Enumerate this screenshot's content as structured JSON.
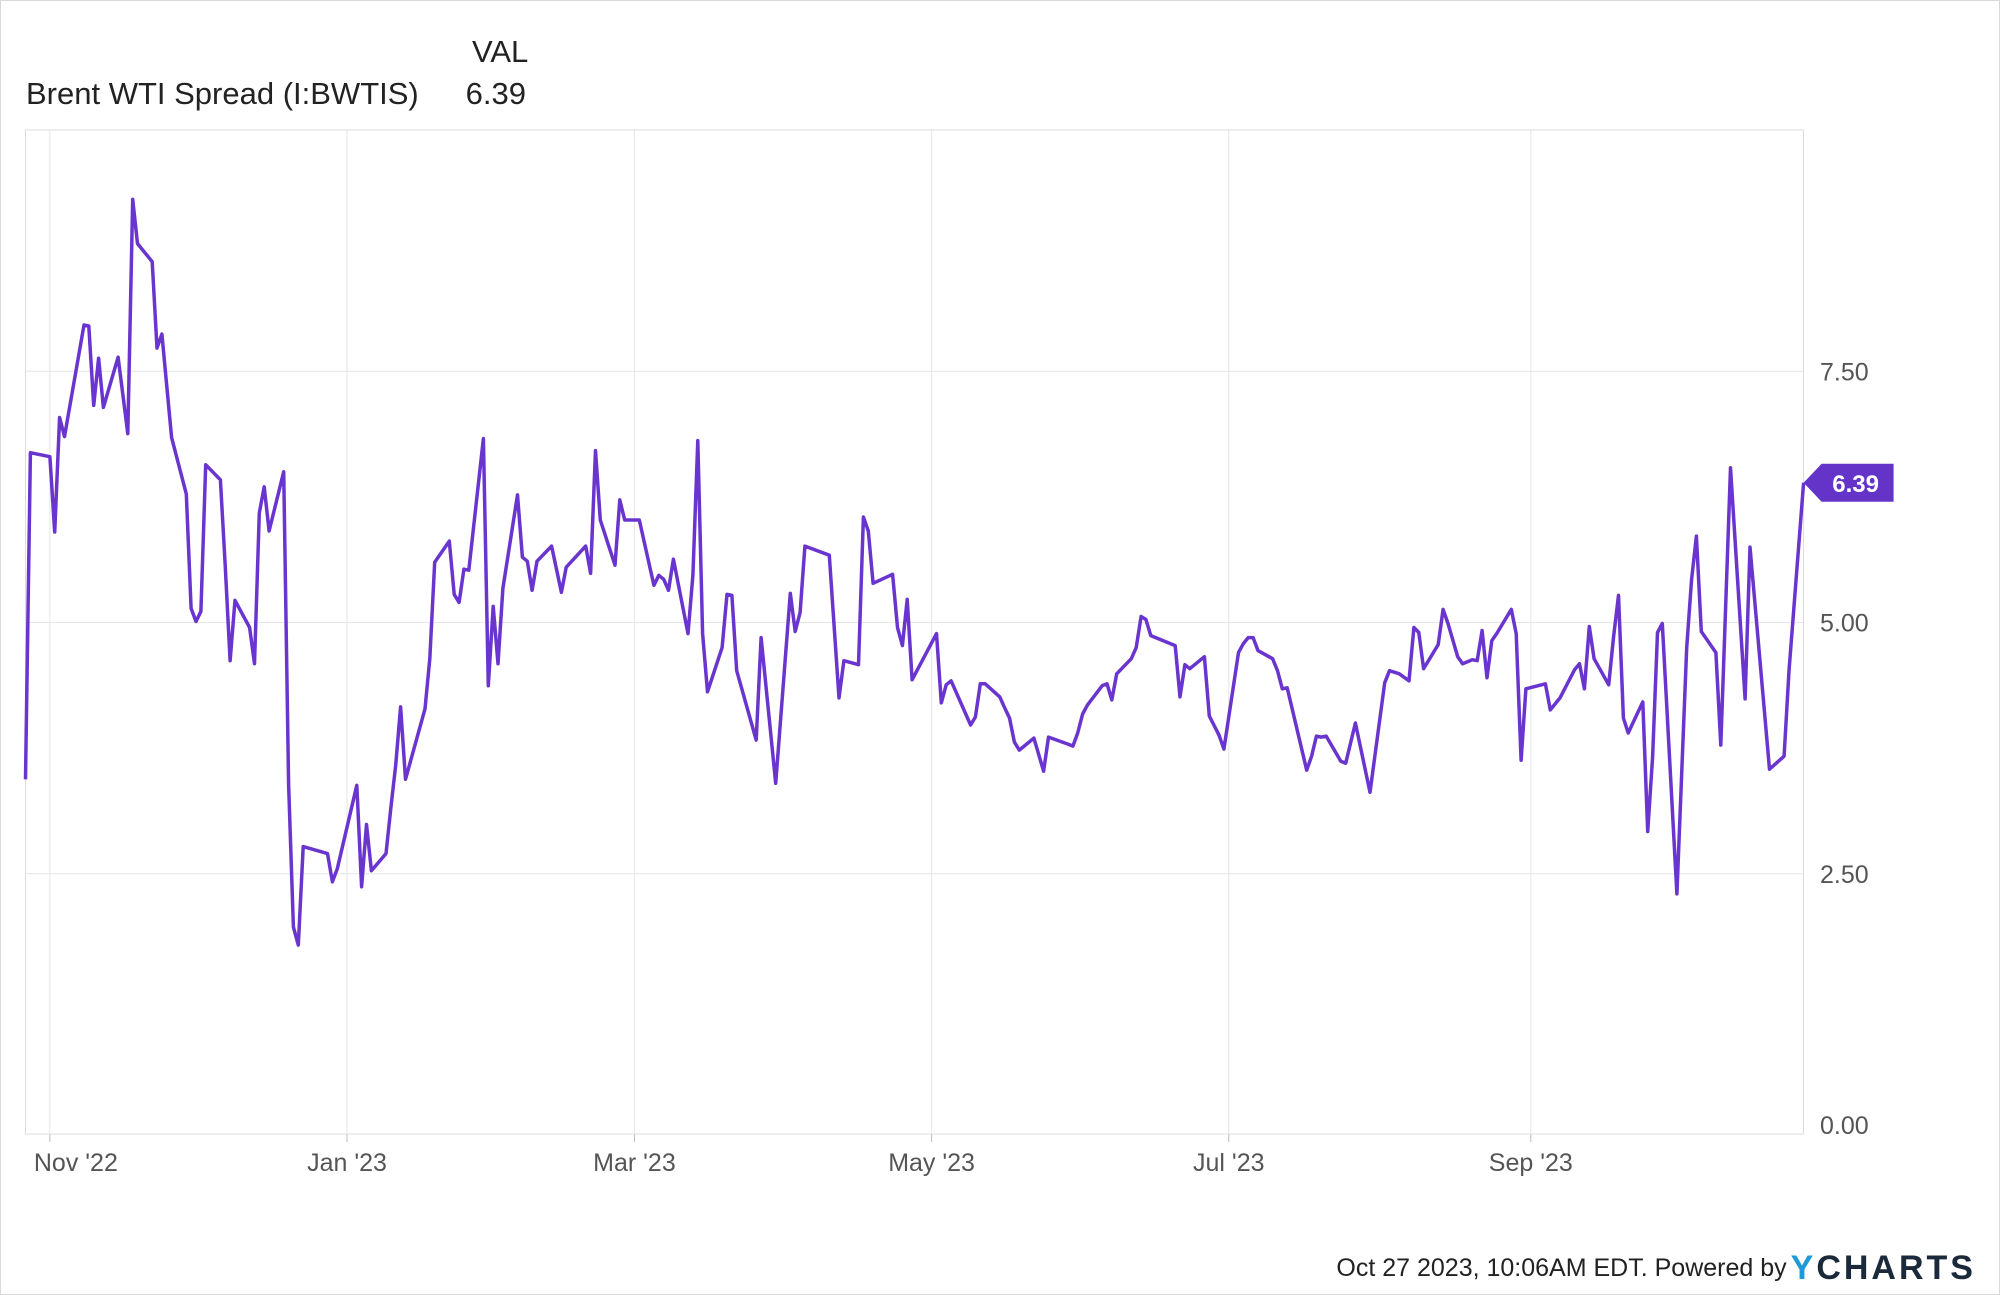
{
  "header": {
    "column_label": "VAL",
    "series_label": "Brent WTI Spread (I:BWTIS)",
    "series_value": "6.39"
  },
  "footer": {
    "timestamp": "Oct 27 2023, 10:06AM EDT. Powered by",
    "logo_y": "Y",
    "logo_rest": "CHARTS"
  },
  "colors": {
    "line": "#6a35cf",
    "label_bg": "#6434c8",
    "grid": "#e6e6e6",
    "axis_text": "#555555"
  },
  "chart_data": {
    "type": "line",
    "title": "",
    "xlabel": "",
    "ylabel": "",
    "ylim": [
      0,
      9.5
    ],
    "xlim": [
      "2022-10-27",
      "2023-10-27"
    ],
    "grid": true,
    "y_axis_position": "right",
    "y_ticks": [
      "0.00",
      "2.50",
      "5.00",
      "7.50"
    ],
    "x_ticks": [
      {
        "date": "2022-11-01",
        "label": "Nov '22"
      },
      {
        "date": "2023-01-01",
        "label": "Jan '23"
      },
      {
        "date": "2023-03-01",
        "label": "Mar '23"
      },
      {
        "date": "2023-05-01",
        "label": "May '23"
      },
      {
        "date": "2023-07-01",
        "label": "Jul '23"
      },
      {
        "date": "2023-09-01",
        "label": "Sep '23"
      }
    ],
    "last_value_label": "6.39",
    "series": [
      {
        "name": "Brent WTI Spread (I:BWTIS)",
        "points": [
          [
            "2022-10-27",
            3.44
          ],
          [
            "2022-10-28",
            6.69
          ],
          [
            "2022-11-01",
            6.65
          ],
          [
            "2022-11-02",
            5.9
          ],
          [
            "2022-11-03",
            7.04
          ],
          [
            "2022-11-04",
            6.85
          ],
          [
            "2022-11-08",
            7.96
          ],
          [
            "2022-11-09",
            7.95
          ],
          [
            "2022-11-10",
            7.16
          ],
          [
            "2022-11-11",
            7.63
          ],
          [
            "2022-11-12",
            7.14
          ],
          [
            "2022-11-15",
            7.64
          ],
          [
            "2022-11-17",
            6.88
          ],
          [
            "2022-11-18",
            9.21
          ],
          [
            "2022-11-19",
            8.77
          ],
          [
            "2022-11-22",
            8.59
          ],
          [
            "2022-11-23",
            7.73
          ],
          [
            "2022-11-24",
            7.87
          ],
          [
            "2022-11-26",
            6.84
          ],
          [
            "2022-11-29",
            6.28
          ],
          [
            "2022-11-30",
            5.14
          ],
          [
            "2022-12-01",
            5.01
          ],
          [
            "2022-12-02",
            5.11
          ],
          [
            "2022-12-03",
            6.57
          ],
          [
            "2022-12-06",
            6.42
          ],
          [
            "2022-12-07",
            5.57
          ],
          [
            "2022-12-08",
            4.62
          ],
          [
            "2022-12-09",
            5.22
          ],
          [
            "2022-12-12",
            4.95
          ],
          [
            "2022-12-13",
            4.59
          ],
          [
            "2022-12-14",
            6.09
          ],
          [
            "2022-12-15",
            6.35
          ],
          [
            "2022-12-16",
            5.91
          ],
          [
            "2022-12-19",
            6.5
          ],
          [
            "2022-12-20",
            3.39
          ],
          [
            "2022-12-21",
            1.97
          ],
          [
            "2022-12-22",
            1.79
          ],
          [
            "2022-12-23",
            2.77
          ],
          [
            "2022-12-28",
            2.7
          ],
          [
            "2022-12-29",
            2.42
          ],
          [
            "2022-12-30",
            2.55
          ],
          [
            "2023-01-03",
            3.38
          ],
          [
            "2023-01-04",
            2.37
          ],
          [
            "2023-01-05",
            2.99
          ],
          [
            "2023-01-06",
            2.53
          ],
          [
            "2023-01-09",
            2.7
          ],
          [
            "2023-01-10",
            3.16
          ],
          [
            "2023-01-11",
            3.58
          ],
          [
            "2023-01-12",
            4.16
          ],
          [
            "2023-01-13",
            3.44
          ],
          [
            "2023-01-17",
            4.14
          ],
          [
            "2023-01-18",
            4.64
          ],
          [
            "2023-01-19",
            5.6
          ],
          [
            "2023-01-22",
            5.81
          ],
          [
            "2023-01-23",
            5.28
          ],
          [
            "2023-01-24",
            5.2
          ],
          [
            "2023-01-25",
            5.53
          ],
          [
            "2023-01-26",
            5.52
          ],
          [
            "2023-01-29",
            6.83
          ],
          [
            "2023-01-30",
            4.37
          ],
          [
            "2023-01-31",
            5.16
          ],
          [
            "2023-02-01",
            4.59
          ],
          [
            "2023-02-02",
            5.34
          ],
          [
            "2023-02-05",
            6.27
          ],
          [
            "2023-02-06",
            5.65
          ],
          [
            "2023-02-07",
            5.61
          ],
          [
            "2023-02-08",
            5.32
          ],
          [
            "2023-02-09",
            5.61
          ],
          [
            "2023-02-12",
            5.76
          ],
          [
            "2023-02-13",
            5.53
          ],
          [
            "2023-02-14",
            5.3
          ],
          [
            "2023-02-15",
            5.55
          ],
          [
            "2023-02-19",
            5.76
          ],
          [
            "2023-02-20",
            5.49
          ],
          [
            "2023-02-21",
            6.71
          ],
          [
            "2023-02-22",
            6.02
          ],
          [
            "2023-02-25",
            5.57
          ],
          [
            "2023-02-26",
            6.22
          ],
          [
            "2023-02-27",
            6.02
          ],
          [
            "2023-03-02",
            6.02
          ],
          [
            "2023-03-05",
            5.37
          ],
          [
            "2023-03-06",
            5.47
          ],
          [
            "2023-03-07",
            5.43
          ],
          [
            "2023-03-08",
            5.32
          ],
          [
            "2023-03-09",
            5.63
          ],
          [
            "2023-03-12",
            4.89
          ],
          [
            "2023-03-13",
            5.47
          ],
          [
            "2023-03-14",
            6.81
          ],
          [
            "2023-03-15",
            4.89
          ],
          [
            "2023-03-16",
            4.31
          ],
          [
            "2023-03-19",
            4.75
          ],
          [
            "2023-03-20",
            5.28
          ],
          [
            "2023-03-21",
            5.27
          ],
          [
            "2023-03-22",
            4.52
          ],
          [
            "2023-03-26",
            3.83
          ],
          [
            "2023-03-27",
            4.85
          ],
          [
            "2023-03-30",
            3.4
          ],
          [
            "2023-04-02",
            5.29
          ],
          [
            "2023-04-03",
            4.91
          ],
          [
            "2023-04-04",
            5.1
          ],
          [
            "2023-04-05",
            5.76
          ],
          [
            "2023-04-10",
            5.67
          ],
          [
            "2023-04-12",
            4.25
          ],
          [
            "2023-04-13",
            4.62
          ],
          [
            "2023-04-16",
            4.58
          ],
          [
            "2023-04-17",
            6.05
          ],
          [
            "2023-04-18",
            5.91
          ],
          [
            "2023-04-19",
            5.39
          ],
          [
            "2023-04-23",
            5.48
          ],
          [
            "2023-04-24",
            4.95
          ],
          [
            "2023-04-25",
            4.77
          ],
          [
            "2023-04-26",
            5.23
          ],
          [
            "2023-04-27",
            4.43
          ],
          [
            "2023-05-02",
            4.89
          ],
          [
            "2023-05-03",
            4.2
          ],
          [
            "2023-05-04",
            4.38
          ],
          [
            "2023-05-05",
            4.42
          ],
          [
            "2023-05-09",
            3.98
          ],
          [
            "2023-05-10",
            4.06
          ],
          [
            "2023-05-11",
            4.39
          ],
          [
            "2023-05-12",
            4.39
          ],
          [
            "2023-05-15",
            4.26
          ],
          [
            "2023-05-16",
            4.15
          ],
          [
            "2023-05-17",
            4.05
          ],
          [
            "2023-05-18",
            3.81
          ],
          [
            "2023-05-19",
            3.73
          ],
          [
            "2023-05-22",
            3.85
          ],
          [
            "2023-05-24",
            3.52
          ],
          [
            "2023-05-25",
            3.86
          ],
          [
            "2023-05-29",
            3.79
          ],
          [
            "2023-05-30",
            3.77
          ],
          [
            "2023-05-31",
            3.9
          ],
          [
            "2023-06-01",
            4.09
          ],
          [
            "2023-06-02",
            4.18
          ],
          [
            "2023-06-05",
            4.37
          ],
          [
            "2023-06-06",
            4.39
          ],
          [
            "2023-06-07",
            4.23
          ],
          [
            "2023-06-08",
            4.49
          ],
          [
            "2023-06-11",
            4.64
          ],
          [
            "2023-06-12",
            4.75
          ],
          [
            "2023-06-13",
            5.06
          ],
          [
            "2023-06-14",
            5.03
          ],
          [
            "2023-06-15",
            4.87
          ],
          [
            "2023-06-20",
            4.77
          ],
          [
            "2023-06-21",
            4.26
          ],
          [
            "2023-06-22",
            4.58
          ],
          [
            "2023-06-23",
            4.54
          ],
          [
            "2023-06-26",
            4.66
          ],
          [
            "2023-06-27",
            4.07
          ],
          [
            "2023-06-29",
            3.88
          ],
          [
            "2023-06-30",
            3.74
          ],
          [
            "2023-07-03",
            4.7
          ],
          [
            "2023-07-04",
            4.79
          ],
          [
            "2023-07-05",
            4.85
          ],
          [
            "2023-07-06",
            4.85
          ],
          [
            "2023-07-07",
            4.72
          ],
          [
            "2023-07-10",
            4.64
          ],
          [
            "2023-07-11",
            4.52
          ],
          [
            "2023-07-12",
            4.34
          ],
          [
            "2023-07-13",
            4.35
          ],
          [
            "2023-07-17",
            3.53
          ],
          [
            "2023-07-18",
            3.67
          ],
          [
            "2023-07-19",
            3.87
          ],
          [
            "2023-07-20",
            3.86
          ],
          [
            "2023-07-21",
            3.87
          ],
          [
            "2023-07-24",
            3.62
          ],
          [
            "2023-07-25",
            3.6
          ],
          [
            "2023-07-27",
            4.0
          ],
          [
            "2023-07-30",
            3.31
          ],
          [
            "2023-08-02",
            4.4
          ],
          [
            "2023-08-03",
            4.52
          ],
          [
            "2023-08-05",
            4.49
          ],
          [
            "2023-08-07",
            4.42
          ],
          [
            "2023-08-08",
            4.95
          ],
          [
            "2023-08-09",
            4.9
          ],
          [
            "2023-08-10",
            4.54
          ],
          [
            "2023-08-13",
            4.78
          ],
          [
            "2023-08-14",
            5.13
          ],
          [
            "2023-08-15",
            4.99
          ],
          [
            "2023-08-17",
            4.66
          ],
          [
            "2023-08-18",
            4.59
          ],
          [
            "2023-08-20",
            4.63
          ],
          [
            "2023-08-21",
            4.62
          ],
          [
            "2023-08-22",
            4.92
          ],
          [
            "2023-08-23",
            4.45
          ],
          [
            "2023-08-24",
            4.82
          ],
          [
            "2023-08-25",
            4.89
          ],
          [
            "2023-08-28",
            5.13
          ],
          [
            "2023-08-29",
            4.89
          ],
          [
            "2023-08-30",
            3.63
          ],
          [
            "2023-08-31",
            4.34
          ],
          [
            "2023-09-04",
            4.39
          ],
          [
            "2023-09-05",
            4.13
          ],
          [
            "2023-09-07",
            4.25
          ],
          [
            "2023-09-10",
            4.53
          ],
          [
            "2023-09-11",
            4.59
          ],
          [
            "2023-09-12",
            4.34
          ],
          [
            "2023-09-13",
            4.96
          ],
          [
            "2023-09-14",
            4.64
          ],
          [
            "2023-09-17",
            4.38
          ],
          [
            "2023-09-18",
            4.86
          ],
          [
            "2023-09-19",
            5.27
          ],
          [
            "2023-09-20",
            4.05
          ],
          [
            "2023-09-21",
            3.9
          ],
          [
            "2023-09-24",
            4.21
          ],
          [
            "2023-09-25",
            2.92
          ],
          [
            "2023-09-26",
            3.66
          ],
          [
            "2023-09-27",
            4.9
          ],
          [
            "2023-09-28",
            4.99
          ],
          [
            "2023-10-01",
            2.3
          ],
          [
            "2023-10-03",
            4.75
          ],
          [
            "2023-10-04",
            5.43
          ],
          [
            "2023-10-05",
            5.86
          ],
          [
            "2023-10-06",
            4.91
          ],
          [
            "2023-10-09",
            4.7
          ],
          [
            "2023-10-10",
            3.78
          ],
          [
            "2023-10-12",
            6.54
          ],
          [
            "2023-10-15",
            4.24
          ],
          [
            "2023-10-16",
            5.75
          ],
          [
            "2023-10-20",
            3.54
          ],
          [
            "2023-10-23",
            3.67
          ],
          [
            "2023-10-24",
            4.52
          ],
          [
            "2023-10-27",
            6.39
          ]
        ]
      }
    ]
  }
}
